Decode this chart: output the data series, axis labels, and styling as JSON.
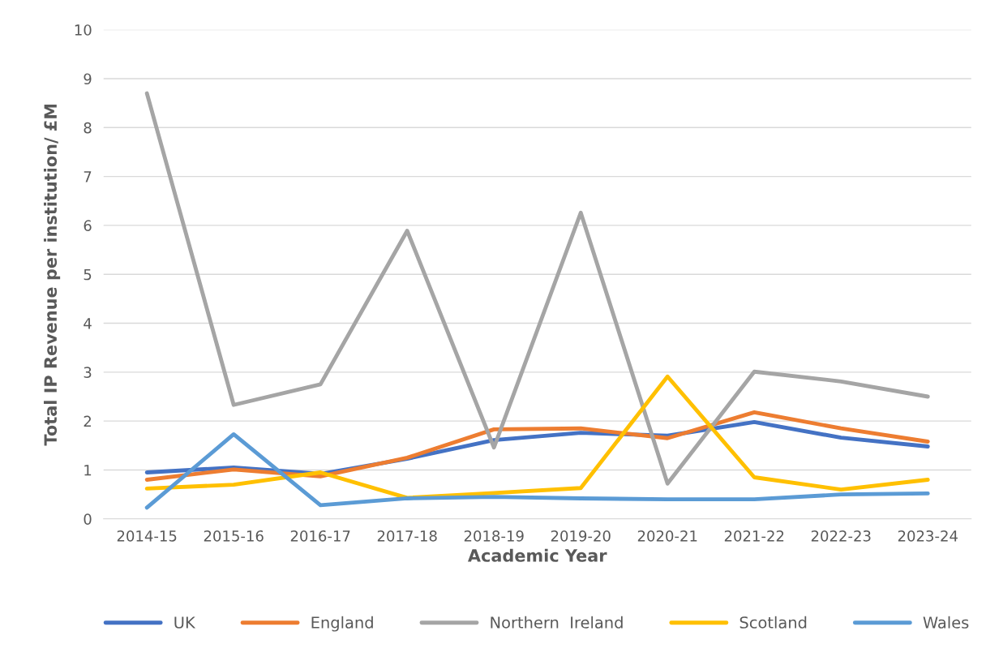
{
  "chart_data": {
    "type": "line",
    "xlabel": "Academic Year",
    "ylabel": "Total IP Revenue per institution/ £M",
    "categories": [
      "2014-15",
      "2015-16",
      "2016-17",
      "2017-18",
      "2018-19",
      "2019-20",
      "2020-21",
      "2021-22",
      "2022-23",
      "2023-24"
    ],
    "series": [
      {
        "name": "UK",
        "color": "#4472c4",
        "values": [
          0.95,
          1.05,
          0.92,
          1.23,
          1.61,
          1.76,
          1.7,
          1.98,
          1.66,
          1.48
        ]
      },
      {
        "name": "England",
        "color": "#ed7d31",
        "values": [
          0.8,
          1.01,
          0.87,
          1.25,
          1.83,
          1.85,
          1.65,
          2.18,
          1.85,
          1.58
        ]
      },
      {
        "name": "Northern  Ireland",
        "color": "#a5a5a5",
        "values": [
          8.7,
          2.33,
          2.75,
          5.89,
          1.46,
          6.26,
          0.72,
          3.01,
          2.81,
          2.5
        ]
      },
      {
        "name": "Scotland",
        "color": "#ffc000",
        "values": [
          0.62,
          0.7,
          0.95,
          0.43,
          0.53,
          0.63,
          2.91,
          0.85,
          0.6,
          0.8
        ]
      },
      {
        "name": "Wales",
        "color": "#5b9bd5",
        "values": [
          0.23,
          1.73,
          0.28,
          0.42,
          0.45,
          0.42,
          0.4,
          0.4,
          0.5,
          0.52
        ]
      }
    ],
    "ylim": [
      0,
      10
    ],
    "yticks": [
      0,
      1,
      2,
      3,
      4,
      5,
      6,
      7,
      8,
      9,
      10
    ],
    "grid": "y",
    "legend": "bottom",
    "marker": "none",
    "line_style": "solid"
  }
}
